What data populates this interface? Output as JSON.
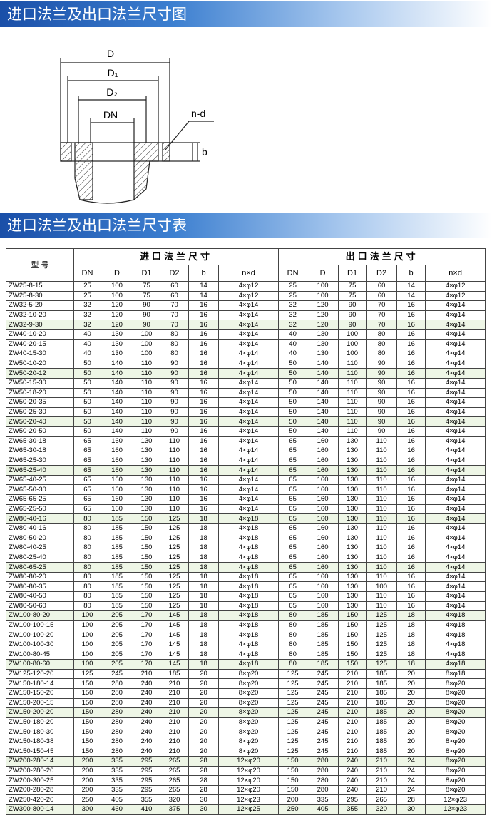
{
  "sections": [
    {
      "title": "进口法兰及出口法兰尺寸图"
    },
    {
      "title": "进口法兰及出口法兰尺寸表"
    }
  ],
  "diagram": {
    "labels": [
      "D",
      "D₁",
      "D₂",
      "DN",
      "n-d",
      "b"
    ]
  },
  "table": {
    "model_header": "型 号",
    "inlet_header": "进口法兰尺寸",
    "outlet_header": "出口法兰尺寸",
    "columns": [
      "DN",
      "D",
      "D1",
      "D2",
      "b",
      "n×d"
    ],
    "rows": [
      [
        "ZW25-8-15",
        25,
        100,
        75,
        60,
        14,
        "4×φ12",
        25,
        100,
        75,
        60,
        14,
        "4×φ12"
      ],
      [
        "ZW25-8-30",
        25,
        100,
        75,
        60,
        14,
        "4×φ12",
        25,
        100,
        75,
        60,
        14,
        "4×φ12"
      ],
      [
        "ZW32-5-20",
        32,
        120,
        90,
        70,
        16,
        "4×φ14",
        32,
        120,
        90,
        70,
        16,
        "4×φ14"
      ],
      [
        "ZW32-10-20",
        32,
        120,
        90,
        70,
        16,
        "4×φ14",
        32,
        120,
        90,
        70,
        16,
        "4×φ14"
      ],
      [
        "ZW32-9-30",
        32,
        120,
        90,
        70,
        16,
        "4×φ14",
        32,
        120,
        90,
        70,
        16,
        "4×φ14"
      ],
      [
        "ZW40-10-20",
        40,
        130,
        100,
        80,
        16,
        "4×φ14",
        40,
        130,
        100,
        80,
        16,
        "4×φ14"
      ],
      [
        "ZW40-20-15",
        40,
        130,
        100,
        80,
        16,
        "4×φ14",
        40,
        130,
        100,
        80,
        16,
        "4×φ14"
      ],
      [
        "ZW40-15-30",
        40,
        130,
        100,
        80,
        16,
        "4×φ14",
        40,
        130,
        100,
        80,
        16,
        "4×φ14"
      ],
      [
        "ZW50-10-20",
        50,
        140,
        110,
        90,
        16,
        "4×φ14",
        50,
        140,
        110,
        90,
        16,
        "4×φ14"
      ],
      [
        "ZW50-20-12",
        50,
        140,
        110,
        90,
        16,
        "4×φ14",
        50,
        140,
        110,
        90,
        16,
        "4×φ14"
      ],
      [
        "ZW50-15-30",
        50,
        140,
        110,
        90,
        16,
        "4×φ14",
        50,
        140,
        110,
        90,
        16,
        "4×φ14"
      ],
      [
        "ZW50-18-20",
        50,
        140,
        110,
        90,
        16,
        "4×φ14",
        50,
        140,
        110,
        90,
        16,
        "4×φ14"
      ],
      [
        "ZW50-20-35",
        50,
        140,
        110,
        90,
        16,
        "4×φ14",
        50,
        140,
        110,
        90,
        16,
        "4×φ14"
      ],
      [
        "ZW50-25-30",
        50,
        140,
        110,
        90,
        16,
        "4×φ14",
        50,
        140,
        110,
        90,
        16,
        "4×φ14"
      ],
      [
        "ZW50-20-40",
        50,
        140,
        110,
        90,
        16,
        "4×φ14",
        50,
        140,
        110,
        90,
        16,
        "4×φ14"
      ],
      [
        "ZW50-20-50",
        50,
        140,
        110,
        90,
        16,
        "4×φ14",
        50,
        140,
        110,
        90,
        16,
        "4×φ14"
      ],
      [
        "ZW65-30-18",
        65,
        160,
        130,
        110,
        16,
        "4×φ14",
        65,
        160,
        130,
        110,
        16,
        "4×φ14"
      ],
      [
        "ZW65-30-18",
        65,
        160,
        130,
        110,
        16,
        "4×φ14",
        65,
        160,
        130,
        110,
        16,
        "4×φ14"
      ],
      [
        "ZW65-25-30",
        65,
        160,
        130,
        110,
        16,
        "4×φ14",
        65,
        160,
        130,
        110,
        16,
        "4×φ14"
      ],
      [
        "ZW65-25-40",
        65,
        160,
        130,
        110,
        16,
        "4×φ14",
        65,
        160,
        130,
        110,
        16,
        "4×φ14"
      ],
      [
        "ZW65-40-25",
        65,
        160,
        130,
        110,
        16,
        "4×φ14",
        65,
        160,
        130,
        110,
        16,
        "4×φ14"
      ],
      [
        "ZW65-50-30",
        65,
        160,
        130,
        110,
        16,
        "4×φ14",
        65,
        160,
        130,
        110,
        16,
        "4×φ14"
      ],
      [
        "ZW65-65-25",
        65,
        160,
        130,
        110,
        16,
        "4×φ14",
        65,
        160,
        130,
        110,
        16,
        "4×φ14"
      ],
      [
        "ZW65-25-50",
        65,
        160,
        130,
        110,
        16,
        "4×φ14",
        65,
        160,
        130,
        110,
        16,
        "4×φ14"
      ],
      [
        "ZW80-40-16",
        80,
        185,
        150,
        125,
        18,
        "4×φ18",
        65,
        160,
        130,
        110,
        16,
        "4×φ14"
      ],
      [
        "ZW80-40-16",
        80,
        185,
        150,
        125,
        18,
        "4×φ18",
        65,
        160,
        130,
        110,
        16,
        "4×φ14"
      ],
      [
        "ZW80-50-20",
        80,
        185,
        150,
        125,
        18,
        "4×φ18",
        65,
        160,
        130,
        110,
        16,
        "4×φ14"
      ],
      [
        "ZW80-40-25",
        80,
        185,
        150,
        125,
        18,
        "4×φ18",
        65,
        160,
        130,
        110,
        16,
        "4×φ14"
      ],
      [
        "ZW80-25-40",
        80,
        185,
        150,
        125,
        18,
        "4×φ18",
        65,
        160,
        130,
        110,
        16,
        "4×φ14"
      ],
      [
        "ZW80-65-25",
        80,
        185,
        150,
        125,
        18,
        "4×φ18",
        65,
        160,
        130,
        110,
        16,
        "4×φ14"
      ],
      [
        "ZW80-80-20",
        80,
        185,
        150,
        125,
        18,
        "4×φ18",
        65,
        160,
        130,
        110,
        16,
        "4×φ14"
      ],
      [
        "ZW80-80-35",
        80,
        185,
        150,
        125,
        18,
        "4×φ18",
        65,
        160,
        130,
        100,
        16,
        "4×φ14"
      ],
      [
        "ZW80-40-50",
        80,
        185,
        150,
        125,
        18,
        "4×φ18",
        65,
        160,
        130,
        110,
        16,
        "4×φ14"
      ],
      [
        "ZW80-50-60",
        80,
        185,
        150,
        125,
        18,
        "4×φ18",
        65,
        160,
        130,
        110,
        16,
        "4×φ14"
      ],
      [
        "ZW100-80-20",
        100,
        205,
        170,
        145,
        18,
        "4×φ18",
        80,
        185,
        150,
        125,
        18,
        "4×φ18"
      ],
      [
        "ZW100-100-15",
        100,
        205,
        170,
        145,
        18,
        "4×φ18",
        80,
        185,
        150,
        125,
        18,
        "4×φ18"
      ],
      [
        "ZW100-100-20",
        100,
        205,
        170,
        145,
        18,
        "4×φ18",
        80,
        185,
        150,
        125,
        18,
        "4×φ18"
      ],
      [
        "ZW100-100-30",
        100,
        205,
        170,
        145,
        18,
        "4×φ18",
        80,
        185,
        150,
        125,
        18,
        "4×φ18"
      ],
      [
        "ZW100-80-45",
        100,
        205,
        170,
        145,
        18,
        "4×φ18",
        80,
        185,
        150,
        125,
        18,
        "4×φ18"
      ],
      [
        "ZW100-80-60",
        100,
        205,
        170,
        145,
        18,
        "4×φ18",
        80,
        185,
        150,
        125,
        18,
        "4×φ18"
      ],
      [
        "ZW125-120-20",
        125,
        245,
        210,
        185,
        20,
        "8×φ20",
        125,
        245,
        210,
        185,
        20,
        "8×φ18"
      ],
      [
        "ZW150-180-14",
        150,
        280,
        240,
        210,
        20,
        "8×φ20",
        125,
        245,
        210,
        185,
        20,
        "8×φ20"
      ],
      [
        "ZW150-150-20",
        150,
        280,
        240,
        210,
        20,
        "8×φ20",
        125,
        245,
        210,
        185,
        20,
        "8×φ20"
      ],
      [
        "ZW150-200-15",
        150,
        280,
        240,
        210,
        20,
        "8×φ20",
        125,
        245,
        210,
        185,
        20,
        "8×φ20"
      ],
      [
        "ZW150-200-20",
        150,
        280,
        240,
        210,
        20,
        "8×φ20",
        125,
        245,
        210,
        185,
        20,
        "8×φ20"
      ],
      [
        "ZW150-180-20",
        150,
        280,
        240,
        210,
        20,
        "8×φ20",
        125,
        245,
        210,
        185,
        20,
        "8×φ20"
      ],
      [
        "ZW150-180-30",
        150,
        280,
        240,
        210,
        20,
        "8×φ20",
        125,
        245,
        210,
        185,
        20,
        "8×φ20"
      ],
      [
        "ZW150-180-38",
        150,
        280,
        240,
        210,
        20,
        "8×φ20",
        125,
        245,
        210,
        185,
        20,
        "8×φ20"
      ],
      [
        "ZW150-150-45",
        150,
        280,
        240,
        210,
        20,
        "8×φ20",
        125,
        245,
        210,
        185,
        20,
        "8×φ20"
      ],
      [
        "ZW200-280-14",
        200,
        335,
        295,
        265,
        28,
        "12×φ20",
        150,
        280,
        240,
        210,
        24,
        "8×φ20"
      ],
      [
        "ZW200-280-20",
        200,
        335,
        295,
        265,
        28,
        "12×φ20",
        150,
        280,
        240,
        210,
        24,
        "8×φ20"
      ],
      [
        "ZW200-300-25",
        200,
        335,
        295,
        265,
        28,
        "12×φ20",
        150,
        280,
        240,
        210,
        24,
        "8×φ20"
      ],
      [
        "ZW200-280-28",
        200,
        335,
        295,
        265,
        28,
        "12×φ20",
        150,
        280,
        240,
        210,
        24,
        "8×φ20"
      ],
      [
        "ZW250-420-20",
        250,
        405,
        355,
        320,
        30,
        "12×φ23",
        200,
        335,
        295,
        265,
        28,
        "12×φ23"
      ],
      [
        "ZW300-800-14",
        300,
        460,
        410,
        375,
        30,
        "12×φ25",
        250,
        405,
        355,
        320,
        30,
        "12×φ23"
      ]
    ]
  }
}
